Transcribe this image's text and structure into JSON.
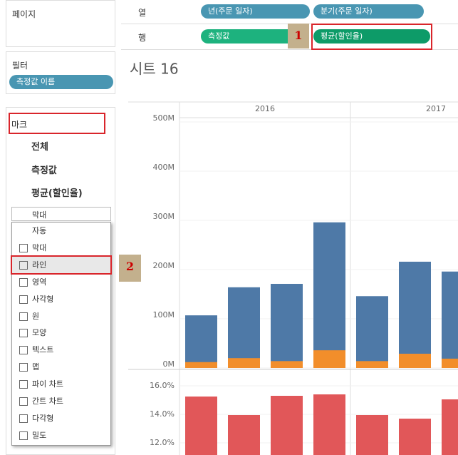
{
  "pages_shelf": {
    "title": "페이지"
  },
  "filters": {
    "title": "필터",
    "pills": [
      "측정값 이름"
    ]
  },
  "marks": {
    "title": "마크",
    "cards": [
      "전체",
      "측정값",
      "평균(할인율)"
    ],
    "mark_type": "막대",
    "menu": [
      "자동",
      "막대",
      "라인",
      "영역",
      "사각형",
      "원",
      "모양",
      "텍스트",
      "맵",
      "파이 차트",
      "간트 차트",
      "다각형",
      "밀도"
    ],
    "menu_highlight": 2
  },
  "columns_shelf": {
    "label": "열",
    "pills": [
      "년(주문 일자)",
      "분기(주문 일자)"
    ]
  },
  "rows_shelf": {
    "label": "행",
    "pills": [
      "측정값",
      "평균(할인율)"
    ]
  },
  "callouts": [
    "1",
    "2"
  ],
  "sheet": {
    "title": "시트 16",
    "headers": [
      "2016",
      "2017"
    ],
    "charts": [
      {
        "type": "bar",
        "ylim": [
          0,
          500000000
        ],
        "yticks": [
          {
            "value": 0,
            "label": "0M"
          },
          {
            "value": 100000000,
            "label": "100M"
          },
          {
            "value": 200000000,
            "label": "200M"
          },
          {
            "value": 300000000,
            "label": "300M"
          },
          {
            "value": 400000000,
            "label": "400M"
          },
          {
            "value": 500000000,
            "label": "500M"
          }
        ],
        "series": [
          {
            "color": "#4e79a7",
            "values": [
              107000000,
              164000000,
              171000000,
              296000000,
              146000000,
              216000000,
              196000000
            ]
          },
          {
            "color": "#f28e2b",
            "values": [
              12000000,
              20000000,
              14000000,
              36000000,
              14000000,
              29000000,
              19000000
            ]
          }
        ]
      },
      {
        "type": "bar",
        "ylim": [
          11,
          17
        ],
        "yticks": [
          {
            "value": 12,
            "label": "12.0%"
          },
          {
            "value": 14,
            "label": "14.0%"
          },
          {
            "value": 16,
            "label": "16.0%"
          }
        ],
        "series": [
          {
            "color": "#e15759",
            "values": [
              15.25,
              13.95,
              15.3,
              15.4,
              13.95,
              13.7,
              15.05
            ]
          }
        ]
      }
    ]
  }
}
